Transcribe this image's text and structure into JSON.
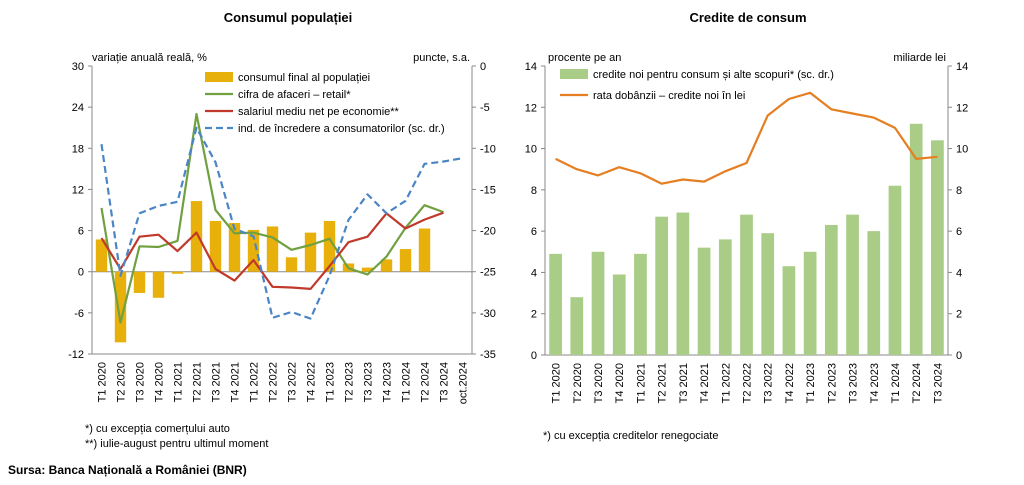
{
  "source": "Sursa: Banca Națională a României (BNR)",
  "chart_data": [
    {
      "type": "bar",
      "title": "Consumul populației",
      "ylabel_left": "variație anuală reală, %",
      "ylabel_right": "puncte, s.a.",
      "ylim_left": [
        -12,
        30
      ],
      "ylim_right": [
        -35,
        0
      ],
      "yticks_left": [
        -12,
        -6,
        0,
        6,
        12,
        18,
        24,
        30
      ],
      "yticks_right": [
        -35,
        -30,
        -25,
        -20,
        -15,
        -10,
        -5,
        0
      ],
      "grid": false,
      "legend_position": "top",
      "categories": [
        "T1 2020",
        "T2 2020",
        "T3 2020",
        "T4 2020",
        "T1 2021",
        "T2 2021",
        "T3 2021",
        "T4 2021",
        "T1 2022",
        "T2 2022",
        "T3 2022",
        "T4 2022",
        "T1 2023",
        "T2 2023",
        "T3 2023",
        "T4 2023",
        "T1 2024",
        "T2 2024",
        "T3 2024",
        "oct.2024"
      ],
      "series": [
        {
          "name": "consumul final al populației",
          "kind": "bar",
          "axis": "left",
          "color": "#E8B00A",
          "values": [
            4.7,
            -10.3,
            -3.1,
            -3.8,
            -0.3,
            10.3,
            7.4,
            7.1,
            6.1,
            6.6,
            2.1,
            5.7,
            7.4,
            1.2,
            0.6,
            1.8,
            3.3,
            6.3,
            null,
            null
          ]
        },
        {
          "name": "cifra de afaceri – retail*",
          "kind": "line",
          "axis": "left",
          "color": "#70A040",
          "values": [
            9.3,
            -7.4,
            3.7,
            3.6,
            4.5,
            23.0,
            9.0,
            5.6,
            5.7,
            5.0,
            3.2,
            3.9,
            4.8,
            0.5,
            -0.4,
            2.2,
            6.4,
            9.7,
            8.7,
            null
          ]
        },
        {
          "name": "salariul mediu net pe economie**",
          "kind": "line",
          "axis": "left",
          "color": "#C0392B",
          "values": [
            4.9,
            0.4,
            5.1,
            5.4,
            3.0,
            5.7,
            0.4,
            -1.3,
            1.7,
            -2.2,
            -2.3,
            -2.5,
            0.8,
            4.3,
            5.1,
            8.5,
            6.3,
            7.6,
            8.6,
            null
          ]
        },
        {
          "name": "ind. de încredere a consumatorilor (sc. dr.)",
          "kind": "line",
          "axis": "right",
          "dash": true,
          "color": "#4A86C5",
          "values": [
            -9.5,
            -25.5,
            -17.9,
            -17.0,
            -16.5,
            -7.5,
            -11.7,
            -19.8,
            -20.7,
            -30.6,
            -29.9,
            -30.7,
            -25.5,
            -18.7,
            -15.6,
            -17.9,
            -16.4,
            -11.9,
            -11.6,
            -11.2
          ]
        }
      ],
      "footnotes": [
        "*) cu excepția comerțului auto",
        "**) iulie-august pentru ultimul moment"
      ]
    },
    {
      "type": "bar",
      "title": "Credite de consum",
      "ylabel_left": "procente pe an",
      "ylabel_right": "miliarde lei",
      "ylim_left": [
        0,
        14
      ],
      "ylim_right": [
        0,
        14
      ],
      "yticks_left": [
        0,
        2,
        4,
        6,
        8,
        10,
        12,
        14
      ],
      "yticks_right": [
        0,
        2,
        4,
        6,
        8,
        10,
        12,
        14
      ],
      "grid": false,
      "legend_position": "top",
      "categories": [
        "T1 2020",
        "T2 2020",
        "T3 2020",
        "T4 2020",
        "T1 2021",
        "T2 2021",
        "T3 2021",
        "T4 2021",
        "T1 2022",
        "T2 2022",
        "T3 2022",
        "T4 2022",
        "T1 2023",
        "T2 2023",
        "T3 2023",
        "T4 2023",
        "T1 2024",
        "T2 2024",
        "T3 2024"
      ],
      "series": [
        {
          "name": "credite noi pentru consum și alte scopuri* (sc. dr.)",
          "kind": "bar",
          "axis": "right",
          "color": "#A9CC86",
          "values": [
            4.9,
            2.8,
            5.0,
            3.9,
            4.9,
            6.7,
            6.9,
            5.2,
            5.6,
            6.8,
            5.9,
            4.3,
            5.0,
            6.3,
            6.8,
            6.0,
            8.2,
            11.2,
            10.4
          ]
        },
        {
          "name": "rata dobânzii – credite noi în lei",
          "kind": "line",
          "axis": "left",
          "color": "#E67E22",
          "values": [
            9.5,
            9.0,
            8.7,
            9.1,
            8.8,
            8.3,
            8.5,
            8.4,
            8.9,
            9.3,
            11.6,
            12.4,
            12.7,
            11.9,
            11.7,
            11.5,
            11.0,
            9.5,
            9.6
          ]
        }
      ],
      "footnotes": [
        "*) cu excepția creditelor renegociate"
      ]
    }
  ]
}
